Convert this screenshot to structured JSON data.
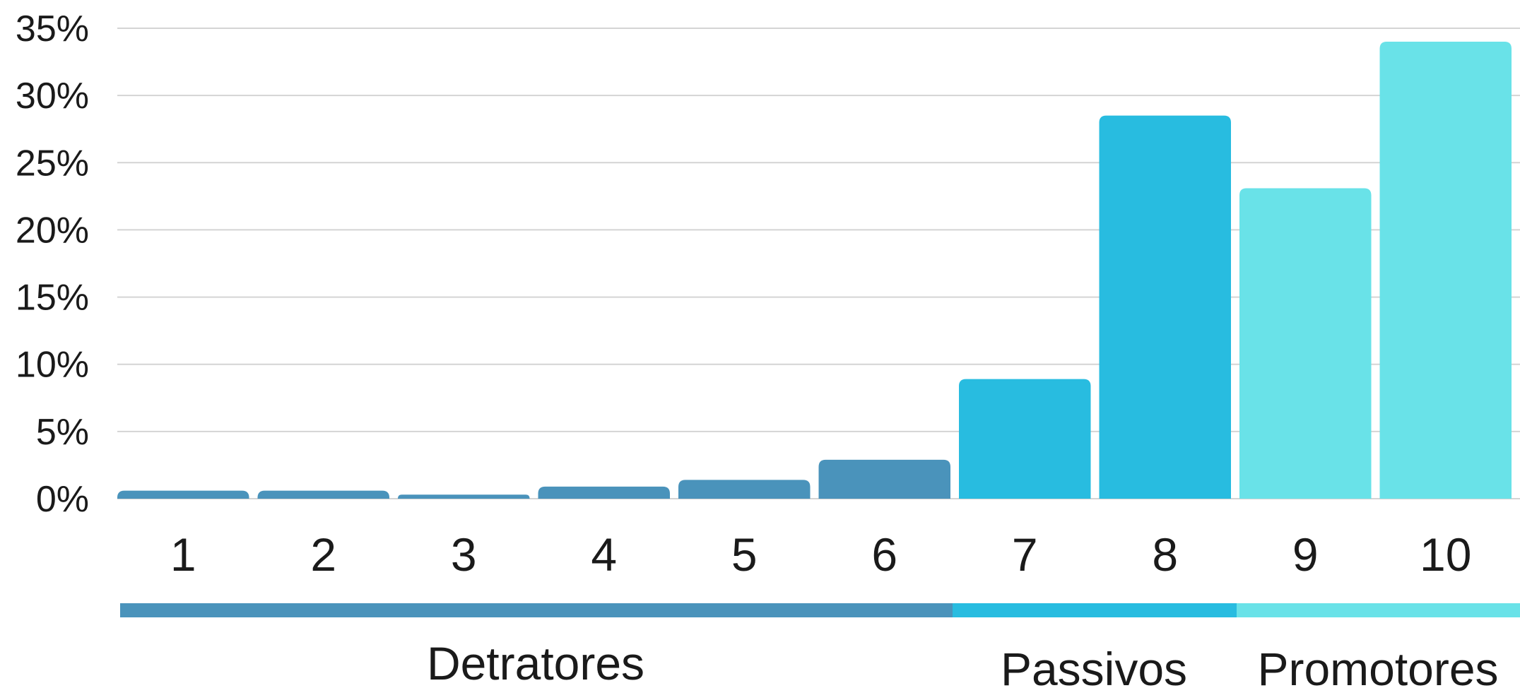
{
  "chart_data": {
    "type": "bar",
    "categories": [
      "1",
      "2",
      "3",
      "4",
      "5",
      "6",
      "7",
      "8",
      "9",
      "10"
    ],
    "values": [
      0.6,
      0.6,
      0.3,
      0.9,
      1.4,
      2.9,
      8.9,
      28.5,
      23.1,
      34.0
    ],
    "ylim": [
      0,
      35
    ],
    "yticks": [
      "0%",
      "5%",
      "10%",
      "15%",
      "20%",
      "25%",
      "30%",
      "35%"
    ],
    "grid": true,
    "groups": [
      {
        "label": "Detratores",
        "categories": [
          "1",
          "2",
          "3",
          "4",
          "5",
          "6"
        ],
        "color": "#4a93bb"
      },
      {
        "label": "Passivos",
        "categories": [
          "7",
          "8"
        ],
        "color": "#28bce0"
      },
      {
        "label": "Promotores",
        "categories": [
          "9",
          "10"
        ],
        "color": "#69e2e8"
      }
    ]
  }
}
